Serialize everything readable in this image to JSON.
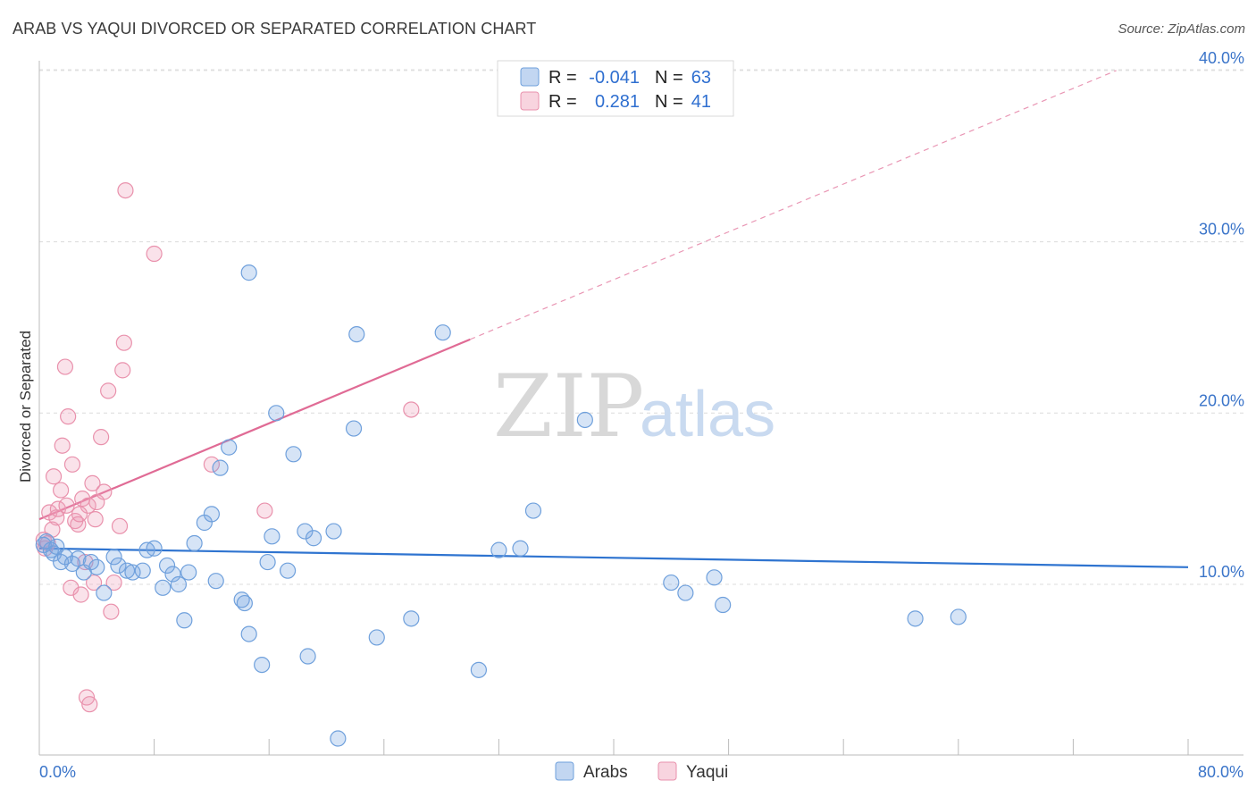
{
  "chart_data": {
    "type": "scatter",
    "title": "ARAB VS YAQUI DIVORCED OR SEPARATED CORRELATION CHART",
    "source": "Source: ZipAtlas.com",
    "xlabel": "",
    "ylabel": "Divorced or Separated",
    "xlim": [
      0,
      80
    ],
    "ylim": [
      0,
      41
    ],
    "x_tick_labels": [
      "0.0%",
      "80.0%"
    ],
    "y_ticks": [
      10,
      20,
      30,
      40
    ],
    "y_tick_labels": [
      "10.0%",
      "20.0%",
      "30.0%",
      "40.0%"
    ],
    "watermark": {
      "zip": "ZIP",
      "atlas": "atlas"
    },
    "legend_top": [
      {
        "r_label": "R =",
        "r_value": "-0.041",
        "n_label": "N =",
        "n_value": "63"
      },
      {
        "r_label": "R =",
        "r_value": "0.281",
        "n_label": "N =",
        "n_value": "41"
      }
    ],
    "series": [
      {
        "name": "Arabs",
        "color": "#6fa0dc",
        "fill": "rgba(120,165,225,0.30)",
        "line_color": "#2f74d0",
        "trend": {
          "x0": 0,
          "y0": 12.1,
          "x1": 80,
          "y1": 11.0
        },
        "points": [
          [
            0.3,
            12.3
          ],
          [
            0.5,
            12.5
          ],
          [
            0.8,
            12.0
          ],
          [
            1.0,
            11.8
          ],
          [
            1.2,
            12.2
          ],
          [
            1.5,
            11.3
          ],
          [
            1.8,
            11.6
          ],
          [
            2.3,
            11.2
          ],
          [
            2.7,
            11.5
          ],
          [
            3.1,
            10.7
          ],
          [
            3.6,
            11.3
          ],
          [
            4.0,
            11.0
          ],
          [
            4.5,
            9.5
          ],
          [
            5.2,
            11.6
          ],
          [
            5.5,
            11.1
          ],
          [
            6.1,
            10.8
          ],
          [
            6.5,
            10.7
          ],
          [
            7.2,
            10.8
          ],
          [
            7.5,
            12.0
          ],
          [
            8.0,
            12.1
          ],
          [
            8.6,
            9.8
          ],
          [
            8.9,
            11.1
          ],
          [
            9.3,
            10.6
          ],
          [
            9.7,
            10.0
          ],
          [
            10.1,
            7.9
          ],
          [
            10.4,
            10.7
          ],
          [
            10.8,
            12.4
          ],
          [
            11.5,
            13.6
          ],
          [
            12.0,
            14.1
          ],
          [
            12.3,
            10.2
          ],
          [
            12.6,
            16.8
          ],
          [
            13.2,
            18.0
          ],
          [
            14.1,
            9.1
          ],
          [
            14.3,
            8.9
          ],
          [
            14.6,
            7.1
          ],
          [
            14.6,
            28.2
          ],
          [
            15.5,
            5.3
          ],
          [
            15.9,
            11.3
          ],
          [
            16.2,
            12.8
          ],
          [
            16.5,
            20.0
          ],
          [
            17.3,
            10.8
          ],
          [
            17.7,
            17.6
          ],
          [
            18.5,
            13.1
          ],
          [
            18.7,
            5.8
          ],
          [
            19.1,
            12.7
          ],
          [
            20.5,
            13.1
          ],
          [
            20.8,
            1.0
          ],
          [
            21.9,
            19.1
          ],
          [
            22.1,
            24.6
          ],
          [
            23.5,
            6.9
          ],
          [
            25.9,
            8.0
          ],
          [
            28.1,
            24.7
          ],
          [
            30.6,
            5.0
          ],
          [
            32.0,
            12.0
          ],
          [
            33.5,
            12.1
          ],
          [
            34.4,
            14.3
          ],
          [
            38.0,
            19.6
          ],
          [
            44.0,
            10.1
          ],
          [
            45.0,
            9.5
          ],
          [
            47.0,
            10.4
          ],
          [
            47.6,
            8.8
          ],
          [
            61.0,
            8.0
          ],
          [
            64.0,
            8.1
          ]
        ]
      },
      {
        "name": "Yaqui",
        "color": "#e991ac",
        "fill": "rgba(240,160,185,0.30)",
        "line_color": "#e06b95",
        "trend": {
          "x0": 0,
          "y0": 13.8,
          "x1": 30,
          "y1": 24.3
        },
        "trend_dashed": {
          "x0": 30,
          "y0": 24.3,
          "x1": 75,
          "y1": 40.0
        },
        "points": [
          [
            0.3,
            12.6
          ],
          [
            0.4,
            12.1
          ],
          [
            0.6,
            12.4
          ],
          [
            0.7,
            14.2
          ],
          [
            0.9,
            13.2
          ],
          [
            1.0,
            16.3
          ],
          [
            1.2,
            13.9
          ],
          [
            1.3,
            14.4
          ],
          [
            1.5,
            15.5
          ],
          [
            1.6,
            18.1
          ],
          [
            1.8,
            22.7
          ],
          [
            2.0,
            19.8
          ],
          [
            2.2,
            9.8
          ],
          [
            2.3,
            17.0
          ],
          [
            2.5,
            13.7
          ],
          [
            2.7,
            13.5
          ],
          [
            2.9,
            9.4
          ],
          [
            3.0,
            15.0
          ],
          [
            3.2,
            11.3
          ],
          [
            3.3,
            3.4
          ],
          [
            3.4,
            14.6
          ],
          [
            3.5,
            3.0
          ],
          [
            3.7,
            15.9
          ],
          [
            3.8,
            10.1
          ],
          [
            3.9,
            13.8
          ],
          [
            4.0,
            14.8
          ],
          [
            4.3,
            18.6
          ],
          [
            4.5,
            15.4
          ],
          [
            4.8,
            21.3
          ],
          [
            5.0,
            8.4
          ],
          [
            5.2,
            10.1
          ],
          [
            5.6,
            13.4
          ],
          [
            5.8,
            22.5
          ],
          [
            5.9,
            24.1
          ],
          [
            6.0,
            33.0
          ],
          [
            8.0,
            29.3
          ],
          [
            12.0,
            17.0
          ],
          [
            15.7,
            14.3
          ],
          [
            25.9,
            20.2
          ],
          [
            2.8,
            14.1
          ],
          [
            1.9,
            14.6
          ]
        ]
      }
    ]
  }
}
